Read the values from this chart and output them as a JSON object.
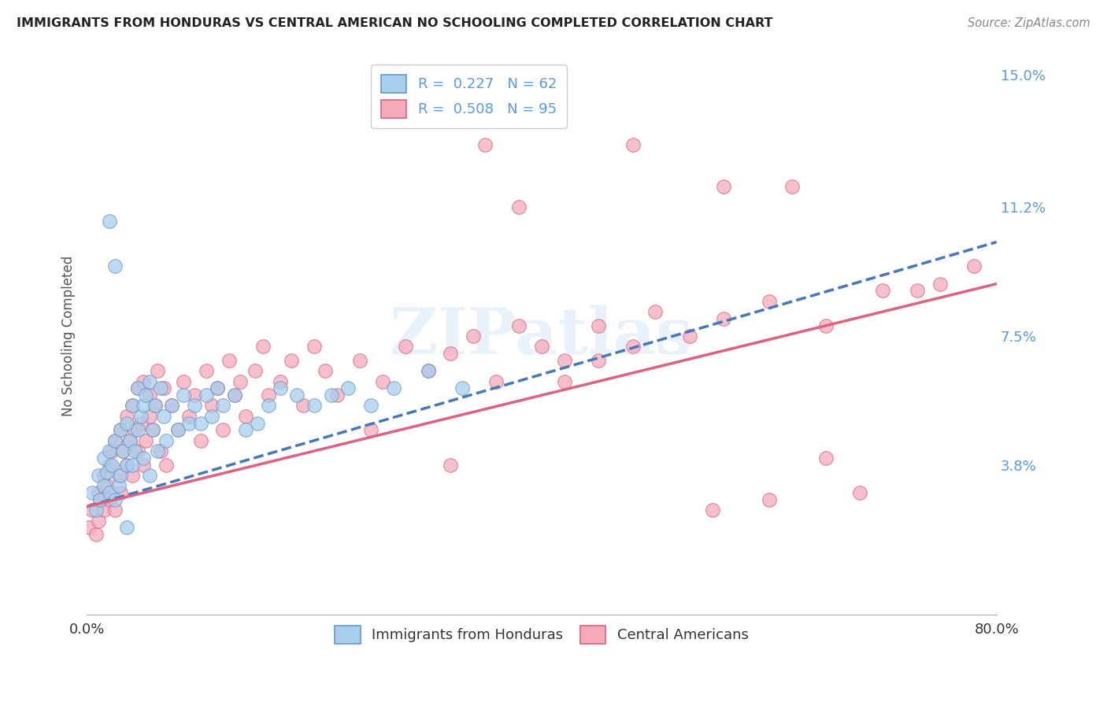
{
  "title": "IMMIGRANTS FROM HONDURAS VS CENTRAL AMERICAN NO SCHOOLING COMPLETED CORRELATION CHART",
  "source": "Source: ZipAtlas.com",
  "ylabel": "No Schooling Completed",
  "color_blue": "#A8CEED",
  "color_blue_edge": "#6699CC",
  "color_pink": "#F4AABB",
  "color_pink_edge": "#E06080",
  "color_blue_line": "#4477BB",
  "color_pink_line": "#E06080",
  "watermark": "ZIPatlas",
  "xlim": [
    0.0,
    0.8
  ],
  "ylim": [
    -0.005,
    0.155
  ],
  "ytick_vals": [
    0.038,
    0.075,
    0.112,
    0.15
  ],
  "ytick_labels": [
    "3.8%",
    "7.5%",
    "11.2%",
    "15.0%"
  ],
  "line_blue_x0": 0.0,
  "line_blue_y0": 0.026,
  "line_blue_x1": 0.8,
  "line_blue_y1": 0.102,
  "line_pink_x0": 0.0,
  "line_pink_y0": 0.026,
  "line_pink_x1": 0.8,
  "line_pink_y1": 0.09,
  "scatter_blue_x": [
    0.005,
    0.008,
    0.01,
    0.012,
    0.015,
    0.015,
    0.018,
    0.02,
    0.02,
    0.022,
    0.025,
    0.025,
    0.028,
    0.03,
    0.03,
    0.032,
    0.035,
    0.035,
    0.038,
    0.04,
    0.04,
    0.042,
    0.045,
    0.045,
    0.048,
    0.05,
    0.05,
    0.052,
    0.055,
    0.055,
    0.058,
    0.06,
    0.062,
    0.065,
    0.068,
    0.07,
    0.075,
    0.08,
    0.085,
    0.09,
    0.095,
    0.1,
    0.105,
    0.11,
    0.115,
    0.12,
    0.13,
    0.14,
    0.15,
    0.16,
    0.17,
    0.185,
    0.2,
    0.215,
    0.23,
    0.25,
    0.27,
    0.3,
    0.33,
    0.02,
    0.025,
    0.035
  ],
  "scatter_blue_y": [
    0.03,
    0.025,
    0.035,
    0.028,
    0.04,
    0.032,
    0.036,
    0.042,
    0.03,
    0.038,
    0.028,
    0.045,
    0.032,
    0.048,
    0.035,
    0.042,
    0.05,
    0.038,
    0.045,
    0.038,
    0.055,
    0.042,
    0.048,
    0.06,
    0.052,
    0.055,
    0.04,
    0.058,
    0.035,
    0.062,
    0.048,
    0.055,
    0.042,
    0.06,
    0.052,
    0.045,
    0.055,
    0.048,
    0.058,
    0.05,
    0.055,
    0.05,
    0.058,
    0.052,
    0.06,
    0.055,
    0.058,
    0.048,
    0.05,
    0.055,
    0.06,
    0.058,
    0.055,
    0.058,
    0.06,
    0.055,
    0.06,
    0.065,
    0.06,
    0.108,
    0.095,
    0.02
  ],
  "scatter_pink_x": [
    0.002,
    0.005,
    0.008,
    0.01,
    0.01,
    0.012,
    0.015,
    0.015,
    0.018,
    0.02,
    0.02,
    0.022,
    0.025,
    0.025,
    0.028,
    0.03,
    0.03,
    0.032,
    0.035,
    0.035,
    0.038,
    0.04,
    0.04,
    0.042,
    0.045,
    0.045,
    0.048,
    0.05,
    0.05,
    0.052,
    0.055,
    0.055,
    0.058,
    0.06,
    0.062,
    0.065,
    0.068,
    0.07,
    0.075,
    0.08,
    0.085,
    0.09,
    0.095,
    0.1,
    0.105,
    0.11,
    0.115,
    0.12,
    0.125,
    0.13,
    0.135,
    0.14,
    0.148,
    0.155,
    0.16,
    0.17,
    0.18,
    0.19,
    0.2,
    0.21,
    0.22,
    0.24,
    0.26,
    0.28,
    0.3,
    0.32,
    0.34,
    0.36,
    0.38,
    0.4,
    0.42,
    0.45,
    0.48,
    0.5,
    0.53,
    0.56,
    0.6,
    0.65,
    0.7,
    0.75,
    0.78,
    0.25,
    0.35,
    0.45,
    0.38,
    0.6,
    0.65,
    0.32,
    0.42,
    0.55,
    0.48,
    0.56,
    0.62,
    0.68,
    0.73
  ],
  "scatter_pink_y": [
    0.02,
    0.025,
    0.018,
    0.03,
    0.022,
    0.028,
    0.035,
    0.025,
    0.032,
    0.038,
    0.028,
    0.042,
    0.025,
    0.045,
    0.035,
    0.048,
    0.03,
    0.042,
    0.052,
    0.038,
    0.045,
    0.055,
    0.035,
    0.048,
    0.042,
    0.06,
    0.05,
    0.038,
    0.062,
    0.045,
    0.052,
    0.058,
    0.048,
    0.055,
    0.065,
    0.042,
    0.06,
    0.038,
    0.055,
    0.048,
    0.062,
    0.052,
    0.058,
    0.045,
    0.065,
    0.055,
    0.06,
    0.048,
    0.068,
    0.058,
    0.062,
    0.052,
    0.065,
    0.072,
    0.058,
    0.062,
    0.068,
    0.055,
    0.072,
    0.065,
    0.058,
    0.068,
    0.062,
    0.072,
    0.065,
    0.07,
    0.075,
    0.062,
    0.078,
    0.072,
    0.068,
    0.078,
    0.072,
    0.082,
    0.075,
    0.08,
    0.085,
    0.078,
    0.088,
    0.09,
    0.095,
    0.048,
    0.13,
    0.068,
    0.112,
    0.028,
    0.04,
    0.038,
    0.062,
    0.025,
    0.13,
    0.118,
    0.118,
    0.03,
    0.088
  ]
}
